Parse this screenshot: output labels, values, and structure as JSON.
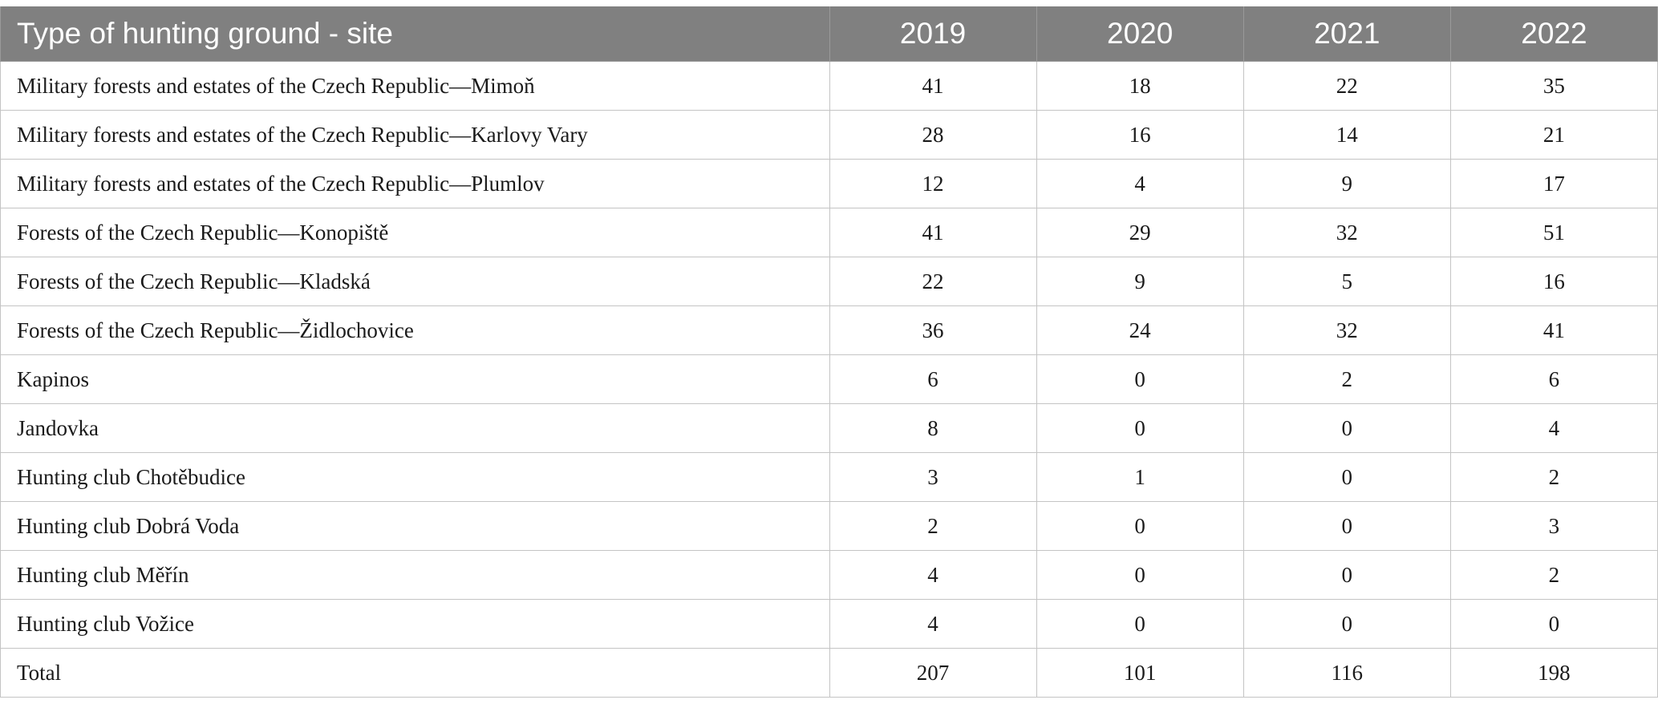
{
  "table": {
    "headers": {
      "site": "Type of hunting ground - site",
      "years": [
        "2019",
        "2020",
        "2021",
        "2022"
      ]
    },
    "rows": [
      {
        "site": "Military forests and estates of the Czech Republic—Mimoň",
        "values": [
          "41",
          "18",
          "22",
          "35"
        ]
      },
      {
        "site": "Military forests and estates of the Czech Republic—Karlovy Vary",
        "values": [
          "28",
          "16",
          "14",
          "21"
        ]
      },
      {
        "site": "Military forests and estates of the Czech Republic—Plumlov",
        "values": [
          "12",
          "4",
          "9",
          "17"
        ]
      },
      {
        "site": "Forests of the Czech Republic—Konopiště",
        "values": [
          "41",
          "29",
          "32",
          "51"
        ]
      },
      {
        "site": "Forests of the Czech Republic—Kladská",
        "values": [
          "22",
          "9",
          "5",
          "16"
        ]
      },
      {
        "site": "Forests of the Czech Republic—Židlochovice",
        "values": [
          "36",
          "24",
          "32",
          "41"
        ]
      },
      {
        "site": "Kapinos",
        "values": [
          "6",
          "0",
          "2",
          "6"
        ]
      },
      {
        "site": "Jandovka",
        "values": [
          "8",
          "0",
          "0",
          "4"
        ]
      },
      {
        "site": "Hunting club Chotěbudice",
        "values": [
          "3",
          "1",
          "0",
          "2"
        ]
      },
      {
        "site": "Hunting club Dobrá Voda",
        "values": [
          "2",
          "0",
          "0",
          "3"
        ]
      },
      {
        "site": "Hunting club Měřín",
        "values": [
          "4",
          "0",
          "0",
          "2"
        ]
      },
      {
        "site": "Hunting club Vožice",
        "values": [
          "4",
          "0",
          "0",
          "0"
        ]
      },
      {
        "site": "Total",
        "values": [
          "207",
          "101",
          "116",
          "198"
        ]
      }
    ]
  },
  "colors": {
    "header_bg": "#808080",
    "header_text": "#ffffff",
    "grid": "#c4c4c4",
    "body_text": "#1a1a1a"
  }
}
